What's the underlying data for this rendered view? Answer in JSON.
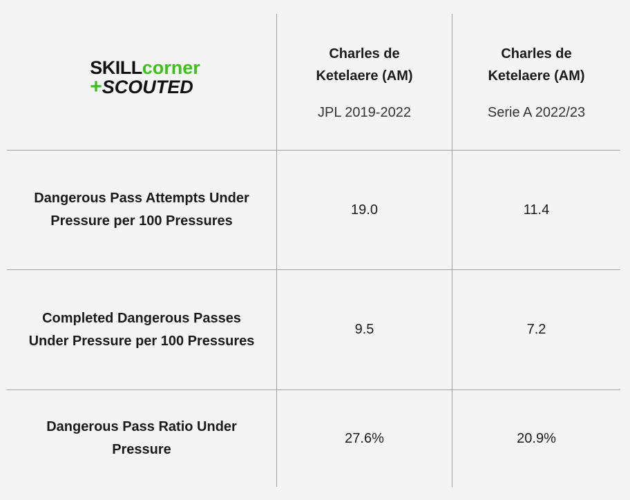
{
  "logo": {
    "brand_part1": "SKILL",
    "brand_part2": "corner",
    "plus": "+",
    "product": "SCOUTED"
  },
  "table": {
    "columns": [
      {
        "player": "Charles de Ketelaere (AM)",
        "season": "JPL 2019-2022"
      },
      {
        "player": "Charles de Ketelaere (AM)",
        "season": "Serie A 2022/23"
      }
    ],
    "rows": [
      [
        "Dangerous Pass Attempts Under Pressure per 100 Pressures",
        "19.0",
        "11.4"
      ],
      [
        "Completed Dangerous Passes Under Pressure per 100 Pressures",
        "9.5",
        "7.2"
      ],
      [
        "Dangerous Pass Ratio Under Pressure",
        "27.6%",
        "20.9%"
      ]
    ]
  }
}
